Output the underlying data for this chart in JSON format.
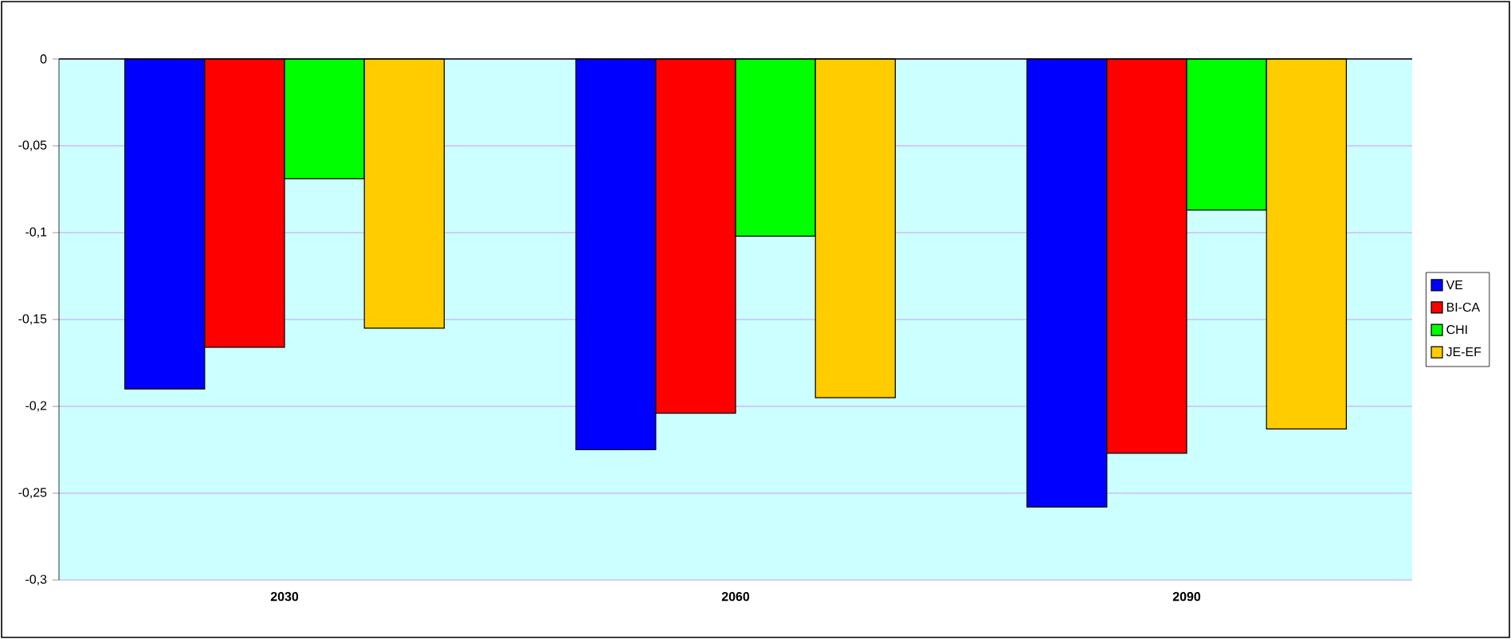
{
  "chart_data": {
    "type": "bar",
    "categories": [
      "2030",
      "2060",
      "2090"
    ],
    "series": [
      {
        "name": "VE",
        "color": "#0000ff",
        "values": [
          -0.19,
          -0.225,
          -0.258
        ]
      },
      {
        "name": "BI-CA",
        "color": "#ff0000",
        "values": [
          -0.166,
          -0.204,
          -0.227
        ]
      },
      {
        "name": "CHI",
        "color": "#00ff00",
        "values": [
          -0.069,
          -0.102,
          -0.087
        ]
      },
      {
        "name": "JE-EF",
        "color": "#ffcc00",
        "values": [
          -0.155,
          -0.195,
          -0.213
        ]
      }
    ],
    "ylim": [
      -0.3,
      0
    ],
    "yticks": [
      {
        "value": -0.3,
        "label": "-0,3"
      },
      {
        "value": -0.25,
        "label": "-0,25"
      },
      {
        "value": -0.2,
        "label": "-0,2"
      },
      {
        "value": -0.15,
        "label": "-0,15"
      },
      {
        "value": -0.1,
        "label": "-0,1"
      },
      {
        "value": -0.05,
        "label": "-0,05"
      },
      {
        "value": 0,
        "label": "0"
      }
    ],
    "grid": "y",
    "legend": "right"
  }
}
